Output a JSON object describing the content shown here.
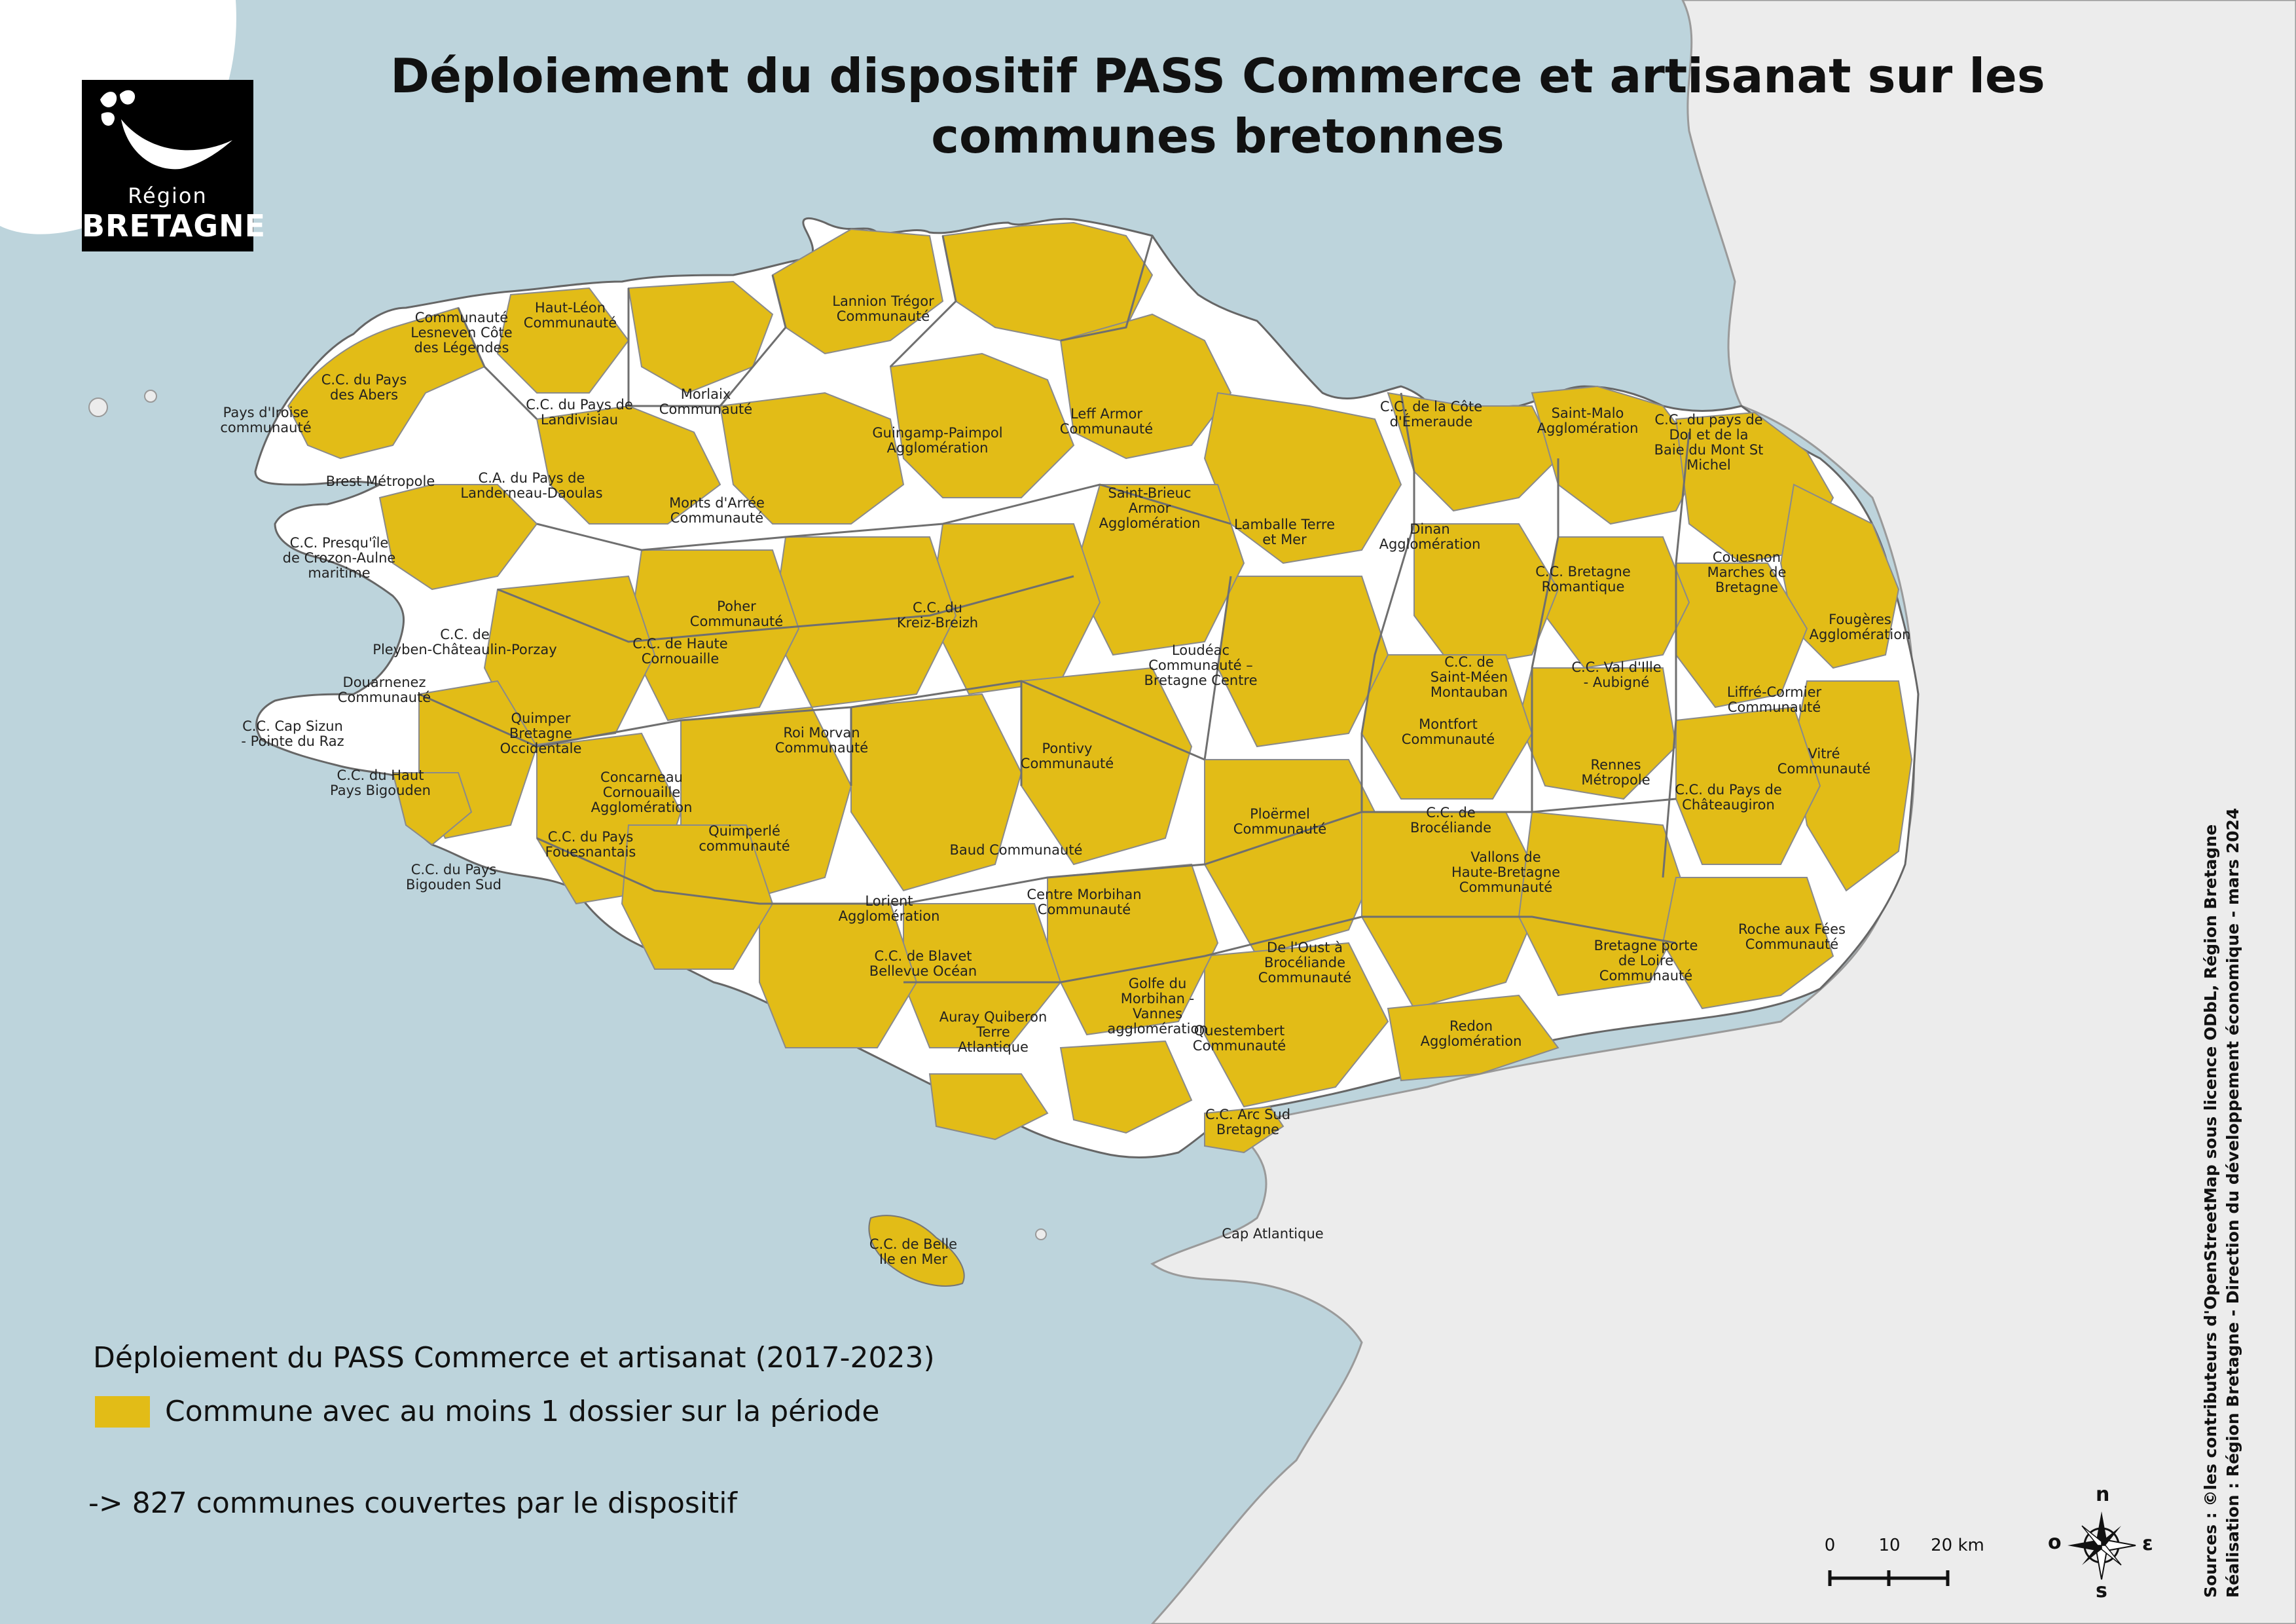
{
  "title": "Déploiement du dispositif PASS Commerce et artisanat sur les communes bretonnes",
  "logo": {
    "line1": "Région",
    "line2": "BRETAGNE"
  },
  "colors": {
    "sea": "#bdd4dc",
    "outside_land": "#ececec",
    "covered": "#e2bc17",
    "uncovered": "#ffffff",
    "epci_border": "#777777"
  },
  "legend": {
    "title": "Déploiement du PASS Commerce et artisanat (2017-2023)",
    "item": "Commune avec au moins 1 dossier sur la période",
    "note": "-> 827 communes couvertes par le dispositif"
  },
  "scale": {
    "labels": [
      "0",
      "10",
      "20 km"
    ]
  },
  "compass": {
    "n": "n",
    "e": "ε",
    "s": "s",
    "o": "o"
  },
  "sources": {
    "line1": "Sources : ©les contributeurs d'OpenStreetMap sous licence ODbL, Région Bretagne",
    "line2": "Réalisation : Région Bretagne - Direction du développement économique - mars 2024"
  },
  "epci_labels": [
    "Communauté\nLesneven Côte\ndes Légendes",
    "Haut-Léon\nCommunauté",
    "Lannion Trégor\nCommunauté",
    "C.C. du Pays\ndes Abers",
    "Pays d'Iroise\ncommunauté",
    "C.C. du Pays de\nLandivisiau",
    "Morlaix\nCommunauté",
    "Leff Armor\nCommunauté",
    "Guingamp-Paimpol\nAgglomération",
    "C.C. de la Côte\nd'Émeraude",
    "Saint-Malo\nAgglomération",
    "C.C. du pays de\nDol et de la\nBaie du Mont St\nMichel",
    "Brest Métropole",
    "C.A. du Pays de\nLanderneau-Daoulas",
    "Monts d'Arrée\nCommunauté",
    "Saint-Brieuc\nArmor\nAgglomération",
    "Lamballe Terre\net Mer",
    "Dinan\nAgglomération",
    "C.C. Presqu'île\nde Crozon-Aulne\nmaritime",
    "C.C. Bretagne\nRomantique",
    "Couesnon\nMarches de\nBretagne",
    "Poher\nCommunauté",
    "C.C. du\nKreiz-Breizh",
    "C.C. de\nPleyben-Châteaulin-Porzay",
    "C.C. de Haute\nCornouaille",
    "Loudéac\nCommunauté –\nBretagne Centre",
    "Fougères\nAgglomération",
    "C.C. de\nSaint-Méen\nMontauban",
    "C.C. Val d'Ille\n- Aubigné",
    "Liffré-Cormier\nCommunauté",
    "Douarnenez\nCommunauté",
    "C.C. Cap Sizun\n- Pointe du Raz",
    "Quimper\nBretagne\nOccidentale",
    "Roi Morvan\nCommunauté",
    "Montfort\nCommunauté",
    "Pontivy\nCommunauté",
    "C.C. du Haut\nPays Bigouden",
    "Concarneau\nCornouaille\nAgglomération",
    "Rennes\nMétropole",
    "C.C. du Pays de\nChâteaugiron",
    "Vitré\nCommunauté",
    "Ploërmel\nCommunauté",
    "C.C. de\nBrocéliande",
    "C.C. du Pays\nFouesnantais",
    "Quimperlé\ncommunauté",
    "Baud Communauté",
    "C.C. du Pays\nBigouden Sud",
    "Vallons de\nHaute-Bretagne\nCommunauté",
    "Lorient\nAgglomération",
    "Centre Morbihan\nCommunauté",
    "Roche aux Fées\nCommunauté",
    "De l'Oust à\nBrocéliande\nCommunauté",
    "Bretagne porte\nde Loire\nCommunauté",
    "C.C. de Blavet\nBellevue Océan",
    "Golfe du\nMorbihan -\nVannes\nagglomération",
    "Auray Quiberon\nTerre\nAtlantique",
    "Redon\nAgglomération",
    "Questembert\nCommunauté",
    "C.C. Arc Sud\nBretagne",
    "Cap Atlantique",
    "C.C. de Belle\nIle en Mer"
  ]
}
